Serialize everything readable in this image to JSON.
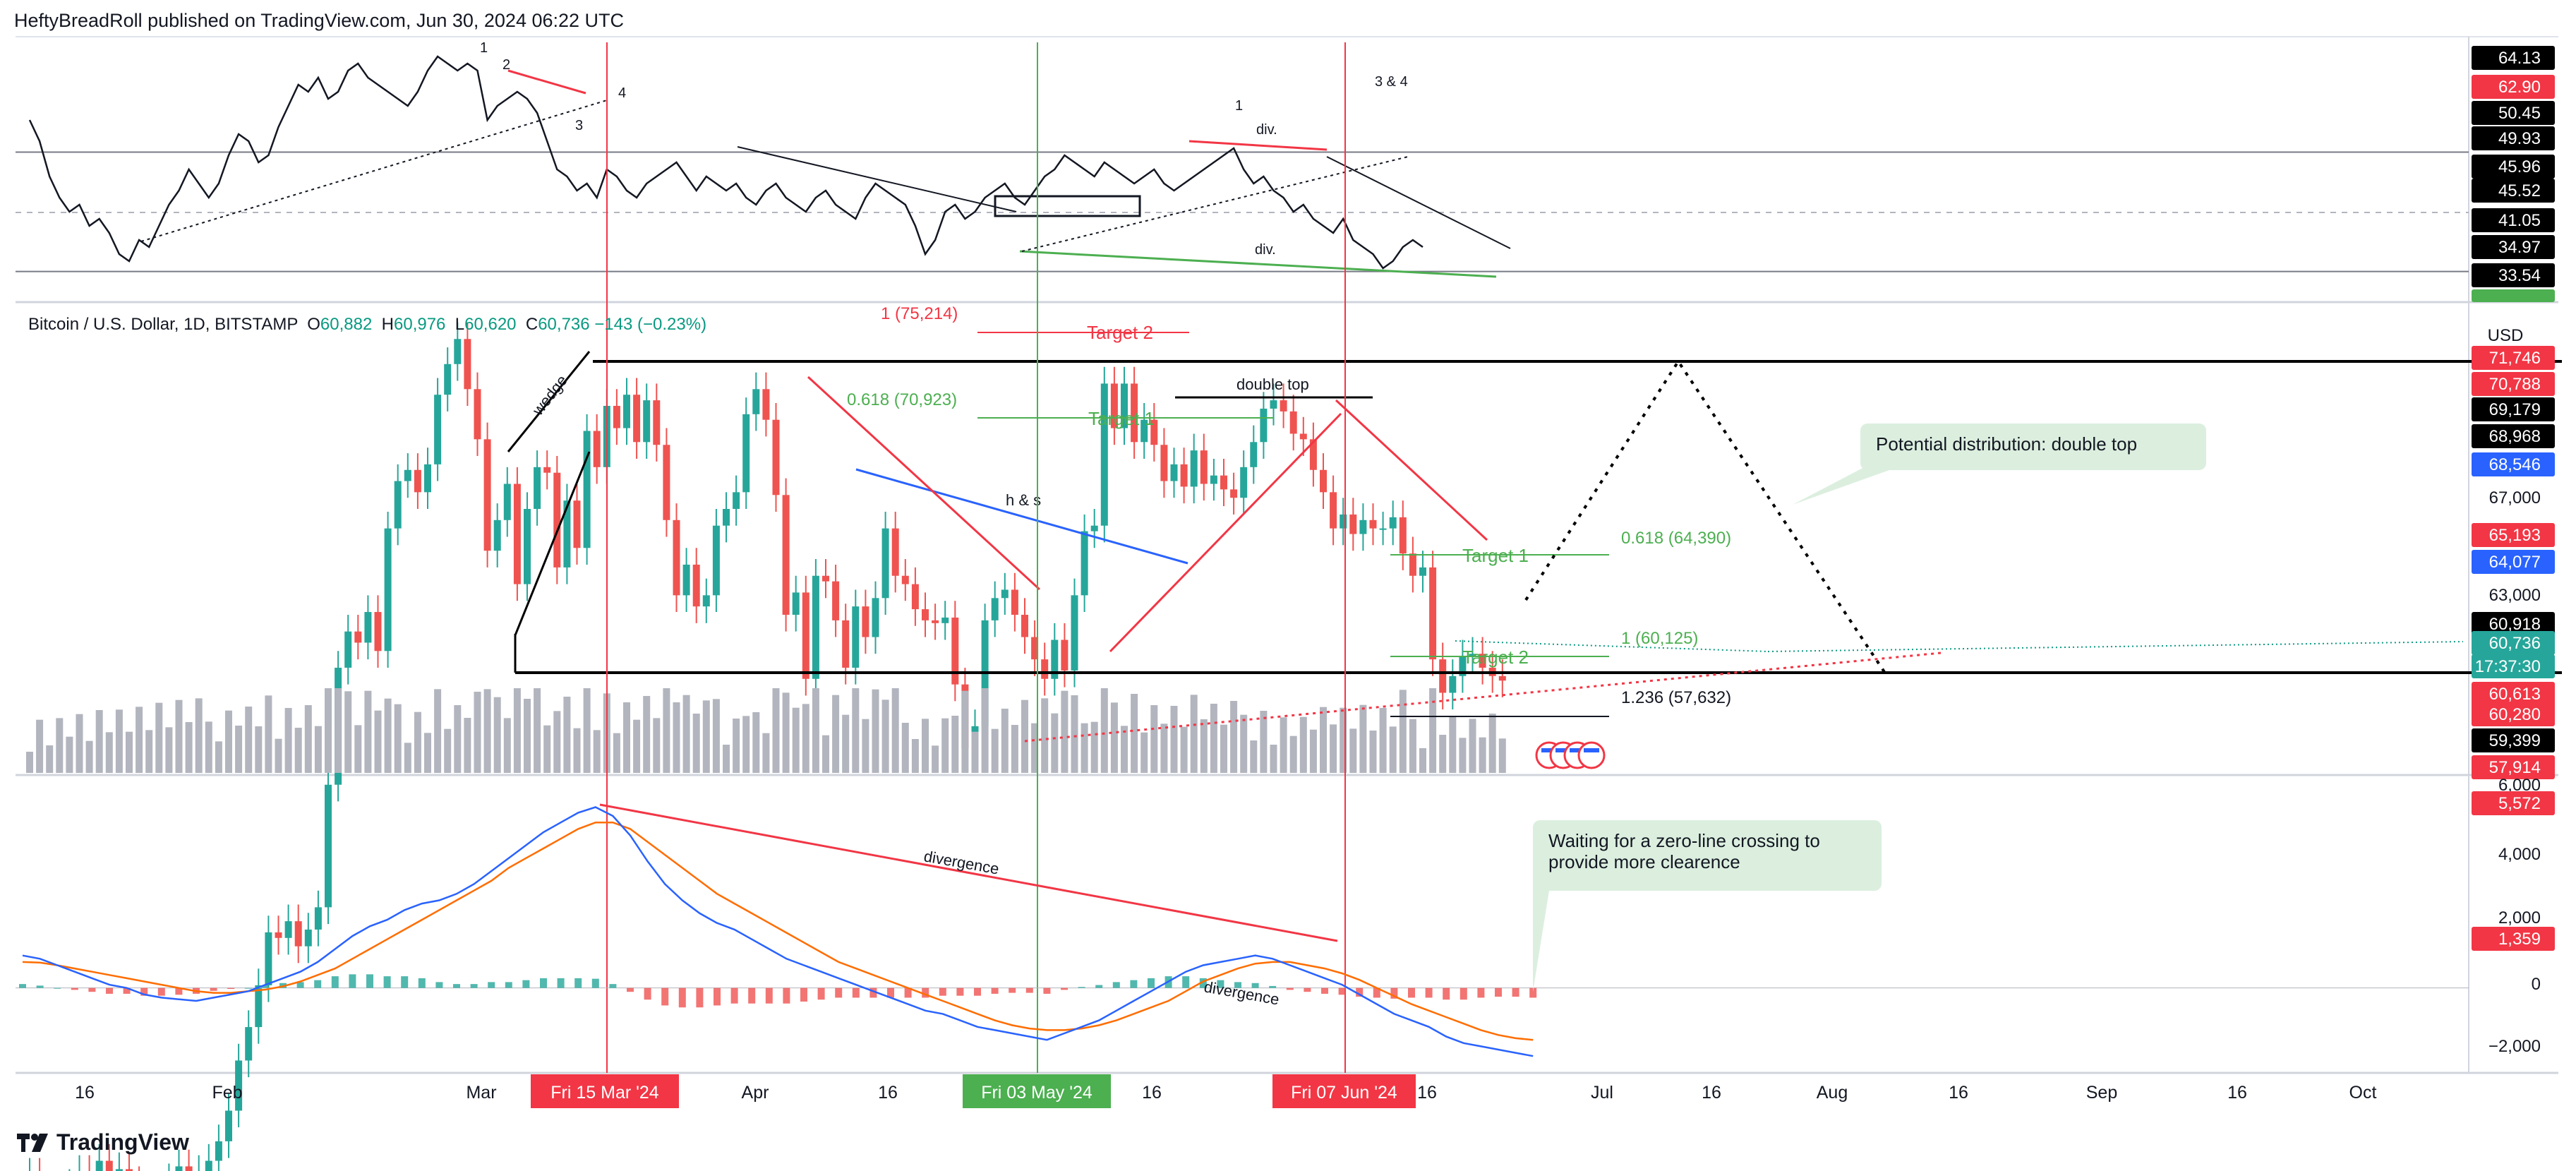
{
  "header": {
    "publisher": "HeftyBreadRoll published on TradingView.com, Jun 30, 2024 06:22 UTC"
  },
  "symbol": {
    "name": "Bitcoin / U.S. Dollar, 1D, BITSTAMP",
    "open_label": "O",
    "open": "60,882",
    "high_label": "H",
    "high": "60,976",
    "low_label": "L",
    "low": "60,620",
    "close_label": "C",
    "close": "60,736",
    "change": "−143 (−0.23%)"
  },
  "currency": "USD",
  "footer": {
    "brand": "TradingView"
  },
  "colors": {
    "up": "#26a69a",
    "down": "#ef5350",
    "green": "#4caf50",
    "red": "#f23645",
    "black": "#000000",
    "blue": "#2962ff",
    "orange": "#ff6d00",
    "note_bg": "#dcefdf"
  },
  "chart_data": [
    {
      "type": "line",
      "panel": "rsi",
      "price_axis_labels": [
        {
          "text": "64.13",
          "bg": "#000000"
        },
        {
          "text": "62.90",
          "bg": "#f23645"
        },
        {
          "text": "50.45",
          "bg": "#000000"
        },
        {
          "text": "49.93",
          "bg": "#000000"
        },
        {
          "text": "45.96",
          "bg": "#000000"
        },
        {
          "text": "45.52",
          "bg": "#000000"
        },
        {
          "text": "41.05",
          "bg": "#000000"
        },
        {
          "text": "34.97",
          "bg": "#000000"
        },
        {
          "text": "33.54",
          "bg": "#000000"
        }
      ],
      "annotations": [
        "1",
        "2",
        "3",
        "4",
        "1",
        "div.",
        "div.",
        "3 & 4"
      ],
      "values": [
        55,
        52,
        47,
        44,
        42,
        43,
        40,
        41,
        39,
        36,
        35,
        38,
        37,
        40,
        43,
        45,
        48,
        46,
        44,
        46,
        50,
        53,
        52,
        49,
        50,
        54,
        57,
        60,
        59,
        61,
        58,
        59,
        62,
        63,
        61,
        60,
        59,
        58,
        57,
        59,
        62,
        64,
        63,
        62,
        63,
        62,
        55,
        57,
        58,
        59,
        58,
        56,
        52,
        48,
        47,
        45,
        46,
        44,
        48,
        47,
        45,
        44,
        46,
        47,
        48,
        49,
        47,
        45,
        47,
        46,
        45,
        46,
        44,
        43,
        45,
        46,
        44,
        43,
        42,
        44,
        45,
        43,
        42,
        41,
        44,
        46,
        45,
        44,
        43,
        40,
        36,
        38,
        42,
        43,
        41,
        42,
        44,
        45,
        46,
        44,
        43,
        45,
        47,
        48,
        50,
        49,
        48,
        47,
        49,
        48,
        47,
        46,
        47,
        48,
        46,
        45,
        46,
        47,
        48,
        49,
        50,
        51,
        48,
        46,
        47,
        45,
        44,
        42,
        43,
        41,
        40,
        39,
        41,
        38,
        37,
        36,
        34,
        35,
        37,
        38,
        37
      ]
    },
    {
      "type": "candlestick",
      "panel": "price",
      "price_axis_labels": [
        {
          "text": "71,746",
          "bg": "#f23645"
        },
        {
          "text": "70,788",
          "bg": "#f23645"
        },
        {
          "text": "69,179",
          "bg": "#000000"
        },
        {
          "text": "68,968",
          "bg": "#000000"
        },
        {
          "text": "68,546",
          "bg": "#2962ff"
        },
        {
          "text": "67,000",
          "bg": ""
        },
        {
          "text": "65,193",
          "bg": "#f23645"
        },
        {
          "text": "64,077",
          "bg": "#2962ff"
        },
        {
          "text": "63,000",
          "bg": ""
        },
        {
          "text": "60,918",
          "bg": "#000000"
        },
        {
          "text": "60,736",
          "bg": "#26a69a"
        },
        {
          "text": "17:37:30",
          "bg": "#26a69a"
        },
        {
          "text": "60,613",
          "bg": "#f23645"
        },
        {
          "text": "60,280",
          "bg": "#f23645"
        },
        {
          "text": "59,399",
          "bg": "#000000"
        },
        {
          "text": "57,914",
          "bg": "#f23645"
        }
      ],
      "annotations": {
        "wedge": "wedge",
        "fib_1": "1 (75,214)",
        "target2_top": "Target 2",
        "fib_0618_top": "0.618 (70,923)",
        "target1_top": "Target 1",
        "double_top": "double top",
        "h_and_s": "h & s",
        "fib_0618_right": "0.618 (64,390)",
        "target1_right": "Target 1",
        "fib_1_right": "1 (60,125)",
        "target2_right": "Target 2",
        "fib_1236": "1.236 (57,632)"
      },
      "close": [
        43000,
        42500,
        42200,
        41800,
        42600,
        43100,
        42900,
        43500,
        42800,
        43200,
        42700,
        42300,
        41900,
        42400,
        42800,
        43300,
        42700,
        43100,
        43500,
        44200,
        45300,
        47100,
        48300,
        49800,
        51700,
        51500,
        52100,
        51200,
        51800,
        52600,
        57000,
        61200,
        62500,
        62100,
        63200,
        61800,
        66200,
        67900,
        68300,
        67500,
        68500,
        71000,
        72100,
        73000,
        71200,
        69400,
        65400,
        66500,
        67800,
        64200,
        66900,
        68400,
        68200,
        64800,
        67200,
        65500,
        69700,
        68400,
        70600,
        69800,
        71000,
        69300,
        70800,
        69200,
        66500,
        63800,
        64900,
        63400,
        63800,
        66300,
        66900,
        67500,
        70300,
        71200,
        70100,
        67400,
        63100,
        63900,
        60800,
        64500,
        64300,
        62900,
        61200,
        63400,
        62300,
        63700,
        66200,
        64500,
        64200,
        63300,
        62900,
        62800,
        63000,
        60600,
        58300,
        59100,
        62900,
        63700,
        64000,
        63100,
        62300,
        61500,
        60800,
        62200,
        61100,
        63800,
        66100,
        66300,
        71400,
        69800,
        71400,
        69300,
        70100,
        69200,
        67900,
        68500,
        67700,
        69000,
        67800,
        68100,
        67600,
        67300,
        68400,
        69300,
        70500,
        70800,
        70400,
        69600,
        69400,
        68300,
        67500,
        66200,
        66700,
        66000,
        66500,
        66200,
        66200,
        66600,
        65300,
        64500,
        64800,
        61500,
        60300,
        60900,
        61600,
        61700,
        61200,
        60900,
        60736
      ]
    },
    {
      "type": "bar",
      "panel": "volume"
    },
    {
      "type": "line",
      "panel": "macd",
      "price_axis_labels": [
        {
          "text": "6,000",
          "bg": ""
        },
        {
          "text": "5,572",
          "bg": "#f23645"
        },
        {
          "text": "4,000",
          "bg": ""
        },
        {
          "text": "2,000",
          "bg": ""
        },
        {
          "text": "1,359",
          "bg": "#f23645"
        },
        {
          "text": "0",
          "bg": ""
        },
        {
          "text": "−2,000",
          "bg": ""
        }
      ],
      "annotations": [
        "divergence",
        "divergence"
      ],
      "series": [
        {
          "name": "",
          "values": [
            1000,
            900,
            700,
            500,
            300,
            100,
            0,
            -200,
            -300,
            -350,
            -400,
            -300,
            -200,
            -100,
            100,
            300,
            500,
            800,
            1200,
            1600,
            1900,
            2100,
            2400,
            2600,
            2700,
            2900,
            3200,
            3600,
            4000,
            4400,
            4800,
            5100,
            5400,
            5572,
            5300,
            4700,
            3900,
            3200,
            2700,
            2300,
            2000,
            1800,
            1500,
            1200,
            900,
            700,
            500,
            300,
            100,
            -100,
            -300,
            -500,
            -700,
            -800,
            -1000,
            -1200,
            -1300,
            -1400,
            -1500,
            -1600,
            -1400,
            -1200,
            -1000,
            -700,
            -400,
            -100,
            200,
            500,
            700,
            800,
            900,
            1000,
            900,
            700,
            500,
            300,
            100,
            -200,
            -500,
            -800,
            -1000,
            -1200,
            -1500,
            -1700,
            -1800,
            -1900,
            -2000,
            -2100
          ]
        },
        {
          "name": "",
          "values": [
            800,
            780,
            700,
            600,
            500,
            400,
            300,
            200,
            100,
            0,
            -100,
            -150,
            -150,
            -100,
            -50,
            50,
            200,
            400,
            600,
            900,
            1200,
            1500,
            1800,
            2100,
            2400,
            2700,
            3000,
            3300,
            3700,
            4000,
            4300,
            4600,
            4900,
            5100,
            5100,
            4900,
            4500,
            4100,
            3700,
            3300,
            2900,
            2600,
            2300,
            2000,
            1700,
            1400,
            1100,
            800,
            600,
            400,
            200,
            0,
            -200,
            -400,
            -600,
            -800,
            -1000,
            -1150,
            -1250,
            -1300,
            -1300,
            -1250,
            -1150,
            -1000,
            -800,
            -600,
            -400,
            -100,
            200,
            400,
            600,
            750,
            800,
            800,
            700,
            600,
            450,
            250,
            0,
            -250,
            -500,
            -700,
            -900,
            -1100,
            -1300,
            -1450,
            -1550,
            -1600
          ]
        }
      ]
    }
  ],
  "time_axis": {
    "labels": [
      "16",
      "Feb",
      "Mar",
      "Apr",
      "16",
      "16",
      "Jul",
      "16",
      "Aug",
      "16",
      "Sep",
      "16",
      "Oct"
    ],
    "highlights": [
      {
        "text": "Fri 15 Mar '24",
        "bg": "#f23645"
      },
      {
        "text": "Fri 03 May '24",
        "bg": "#4caf50"
      },
      {
        "text": "Fri 07 Jun '24",
        "bg": "#f23645"
      }
    ],
    "partial_label": "16"
  },
  "notes": [
    {
      "text": "Potential distribution: double top"
    },
    {
      "text": "Waiting for a zero-line crossing to provide more clearence"
    }
  ]
}
